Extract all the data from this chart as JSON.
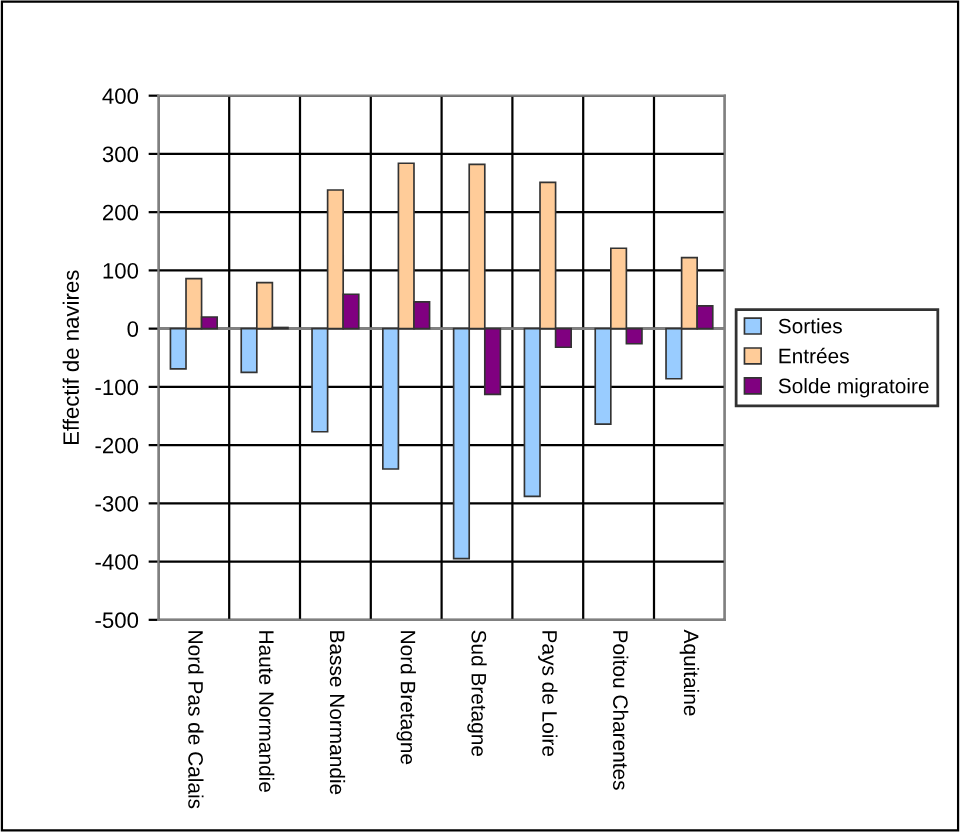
{
  "chart_data": {
    "type": "bar",
    "ylabel": "Effectif de navires",
    "categories": [
      "Nord Pas de Calais",
      "Haute Normandie",
      "Basse Normandie",
      "Nord Bretagne",
      "Sud Bretagne",
      "Pays de Loire",
      "Poitou Charentes",
      "Aquitaine"
    ],
    "series": [
      {
        "name": "Sorties",
        "color": "#99ccff",
        "values": [
          -69,
          -75,
          -177,
          -241,
          -395,
          -288,
          -164,
          -86
        ]
      },
      {
        "name": "Entrées",
        "color": "#ffcc99",
        "values": [
          86,
          79,
          238,
          284,
          282,
          251,
          138,
          122
        ]
      },
      {
        "name": "Solde migratoire",
        "color": "#800080",
        "values": [
          20,
          2,
          59,
          46,
          -113,
          -32,
          -26,
          39
        ]
      }
    ],
    "ylim": [
      -500,
      400
    ],
    "yticks": [
      -500,
      -400,
      -300,
      -200,
      -100,
      0,
      100,
      200,
      300,
      400
    ],
    "grid": true,
    "legend": "right"
  }
}
